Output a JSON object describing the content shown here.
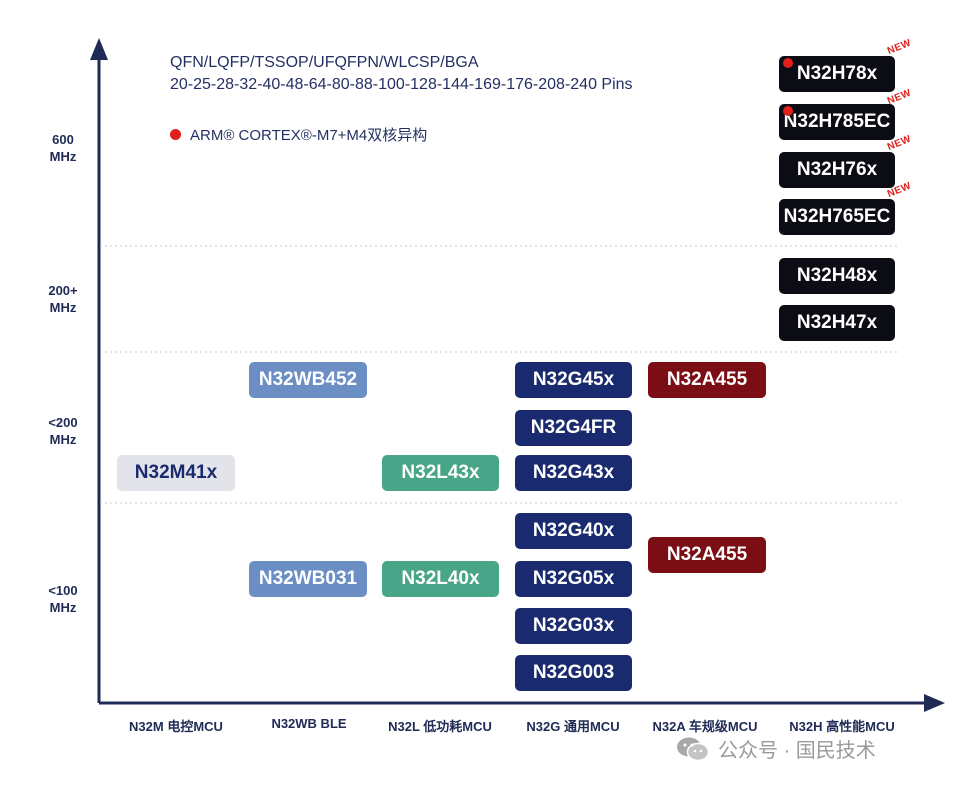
{
  "header": {
    "packages": "QFN/LQFP/TSSOP/UFQFPN/WLCSP/BGA",
    "pins": "20-25-28-32-40-48-64-80-88-100-128-144-169-176-208-240 Pins",
    "core_note": "ARM® CORTEX®-M7+M4双核异构"
  },
  "y_axis": [
    {
      "label": "600\nMHz"
    },
    {
      "label": "200+\nMHz"
    },
    {
      "label": "<200\nMHz"
    },
    {
      "label": "<100\nMHz"
    }
  ],
  "x_axis": [
    "N32M 电控MCU",
    "N32WB BLE",
    "N32L 低功耗MCU",
    "N32G 通用MCU",
    "N32A 车规级MCU",
    "N32H 高性能MCU"
  ],
  "chips": {
    "h78x": "N32H78x",
    "h785ec": "N32H785EC",
    "h76x": "N32H76x",
    "h765ec": "N32H765EC",
    "h48x": "N32H48x",
    "h47x": "N32H47x",
    "wb452": "N32WB452",
    "g45x": "N32G45x",
    "a455_hi": "N32A455",
    "g4fr": "N32G4FR",
    "m41x": "N32M41x",
    "l43x": "N32L43x",
    "g43x": "N32G43x",
    "g40x": "N32G40x",
    "a455_lo": "N32A455",
    "wb031": "N32WB031",
    "l40x": "N32L40x",
    "g05x": "N32G05x",
    "g03x": "N32G03x",
    "g003": "N32G003"
  },
  "new_tag": "NEW",
  "watermark": "公众号 · 国民技术",
  "colors": {
    "axis": "#1f2a55",
    "h_series": "#0c0c14",
    "g_series": "#1a2a6e",
    "a_series": "#7a0e14",
    "wb_series": "#6b8ec5",
    "l_series": "#48a587",
    "m_series": "#e3e3ea",
    "highlight": "#e0201d"
  }
}
